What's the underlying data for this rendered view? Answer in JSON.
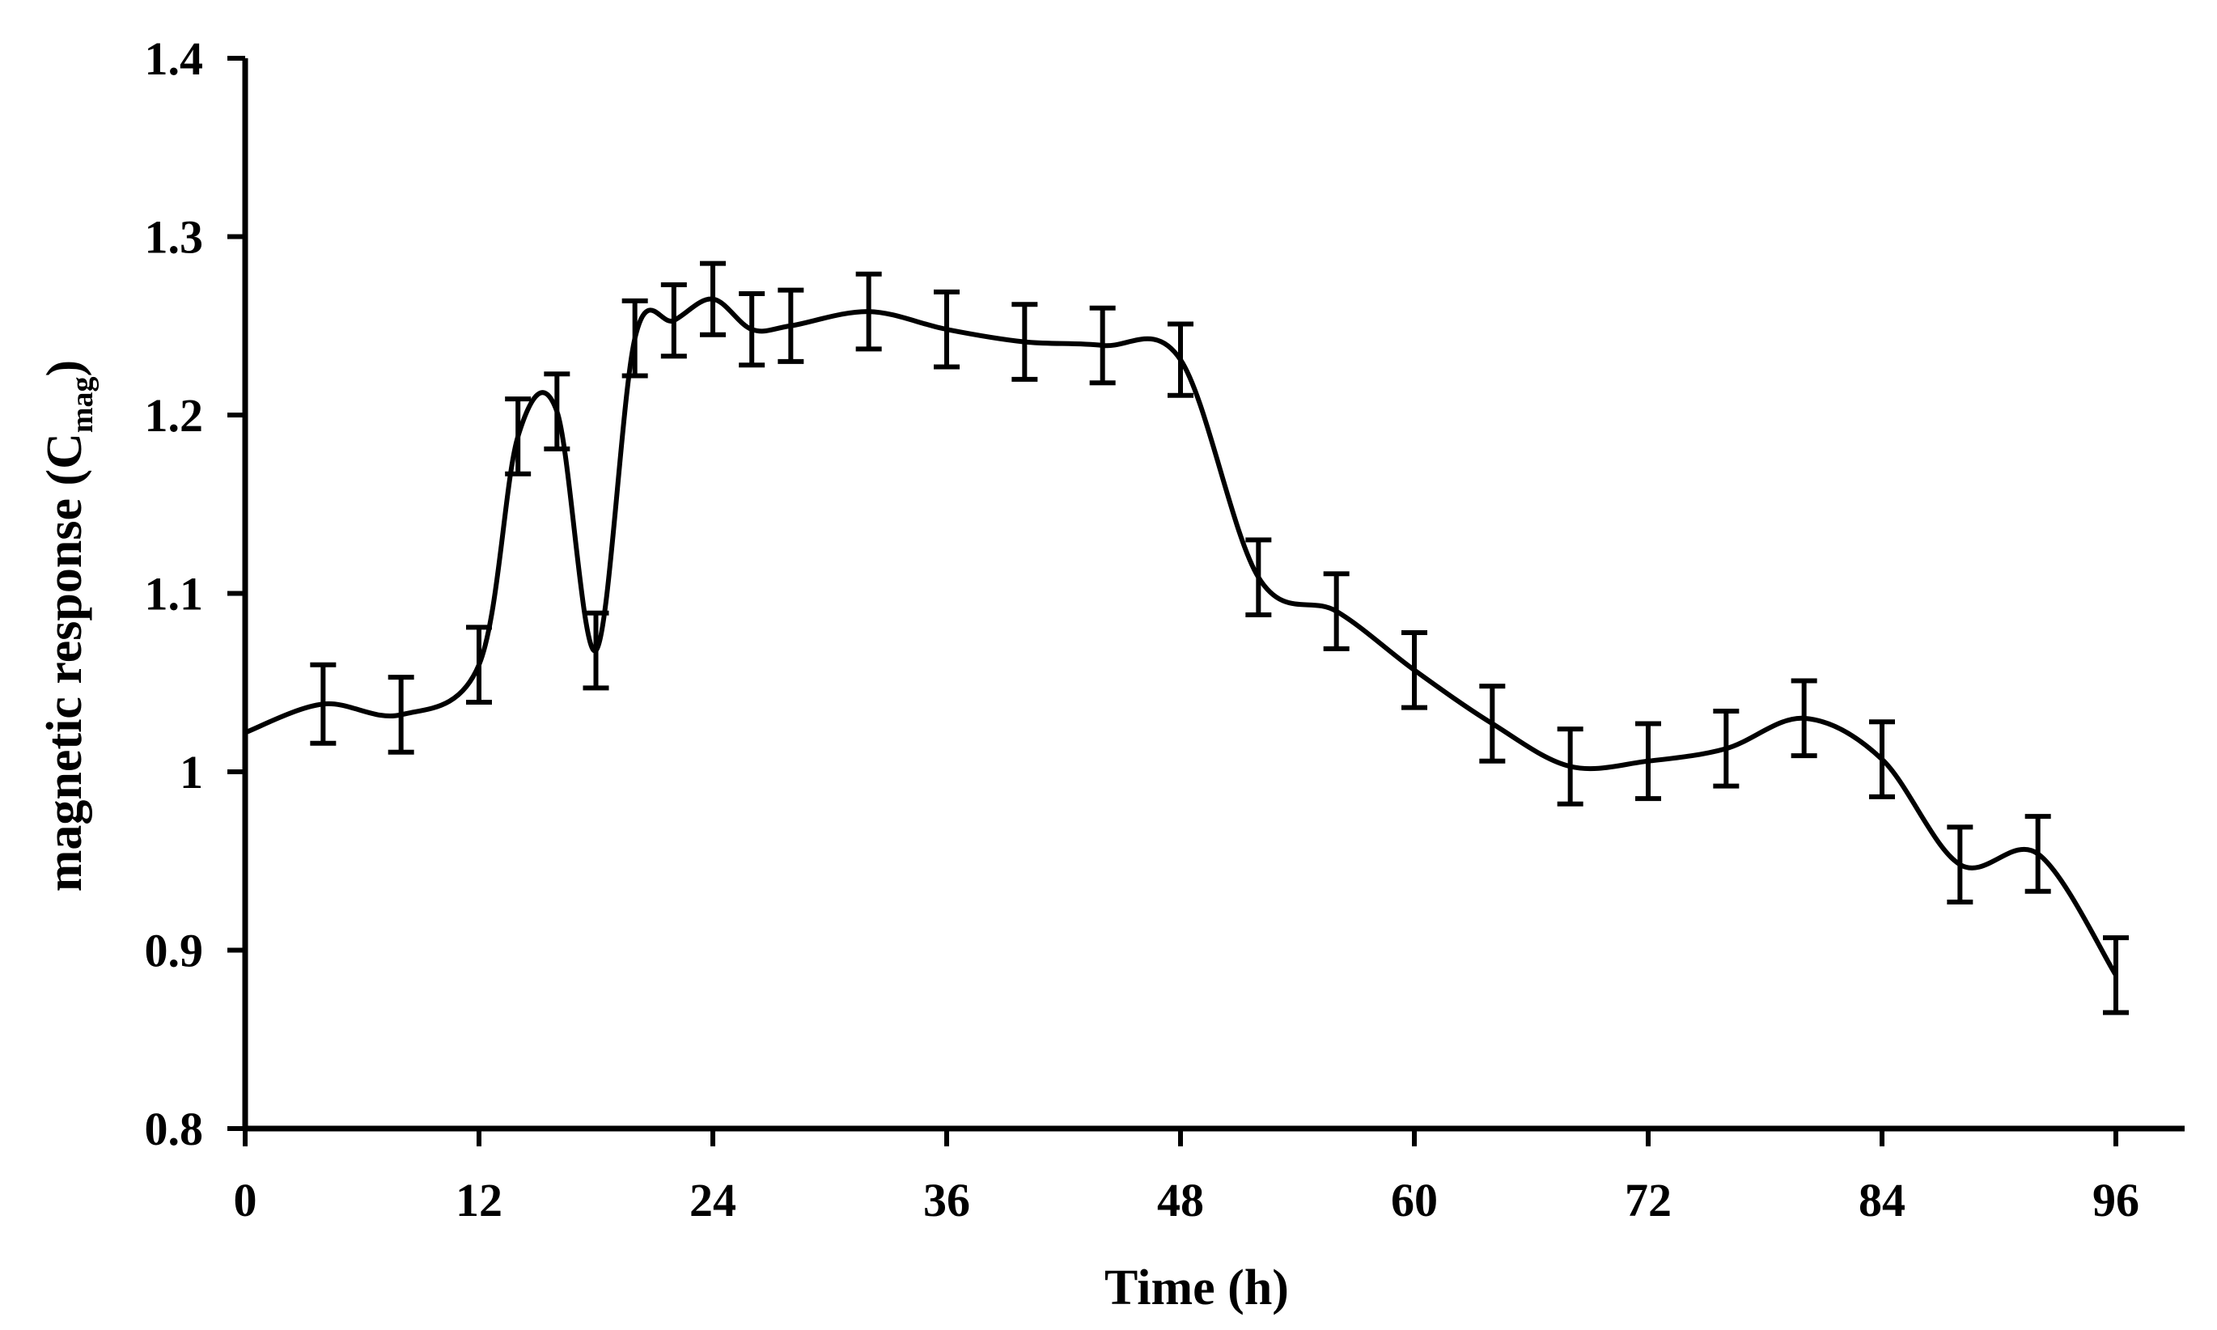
{
  "chart_data": {
    "type": "line",
    "title": "",
    "xlabel": "Time (h)",
    "ylabel": {
      "prefix": "magnetic response (C",
      "subscript": "mag",
      "suffix": ")"
    },
    "xlim": [
      0,
      96
    ],
    "ylim": [
      0.8,
      1.4
    ],
    "x_ticks": [
      0,
      12,
      24,
      36,
      48,
      60,
      72,
      84,
      96
    ],
    "x_tick_labels": [
      "0",
      "12",
      "24",
      "36",
      "48",
      "60",
      "72",
      "84",
      "96"
    ],
    "y_ticks": [
      0.8,
      0.9,
      1.0,
      1.1,
      1.2,
      1.3,
      1.4
    ],
    "y_tick_labels": [
      "0.8",
      "0.9",
      "1",
      "1.1",
      "1.2",
      "1.3",
      "1.4"
    ],
    "grid": false,
    "smooth": true,
    "line_color": "#000000",
    "series": [
      {
        "name": "magnetic response",
        "x": [
          0,
          4,
          8,
          12,
          14,
          16,
          18,
          20,
          22,
          24,
          26,
          28,
          32,
          36,
          40,
          44,
          48,
          52,
          56,
          60,
          64,
          68,
          72,
          76,
          80,
          84,
          88,
          92,
          96
        ],
        "y": [
          1.022,
          1.038,
          1.032,
          1.06,
          1.188,
          1.202,
          1.068,
          1.243,
          1.253,
          1.265,
          1.248,
          1.25,
          1.258,
          1.248,
          1.241,
          1.239,
          1.231,
          1.109,
          1.09,
          1.057,
          1.027,
          1.003,
          1.006,
          1.013,
          1.03,
          1.007,
          0.948,
          0.954,
          0.886
        ],
        "error": [
          0,
          0.022,
          0.021,
          0.021,
          0.021,
          0.021,
          0.021,
          0.021,
          0.02,
          0.02,
          0.02,
          0.02,
          0.021,
          0.021,
          0.021,
          0.021,
          0.02,
          0.021,
          0.021,
          0.021,
          0.021,
          0.021,
          0.021,
          0.021,
          0.021,
          0.021,
          0.021,
          0.021,
          0.021
        ]
      }
    ]
  }
}
